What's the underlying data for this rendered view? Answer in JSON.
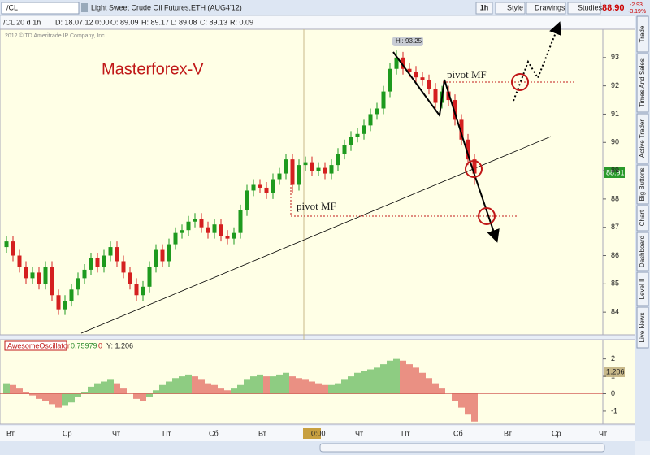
{
  "header": {
    "symbol": "/CL",
    "description": "Light Sweet Crude Oil Futures,ETH (AUG4'12)",
    "interval": "1h",
    "style": "Style",
    "drawings": "Drawings",
    "studies": "Studies",
    "last": "88.90",
    "change": "-2.93",
    "change_pct": "-3.19%"
  },
  "info": {
    "chart": "/CL 20 d 1h",
    "date": "D: 18.07.12 0:00",
    "open": "O: 89.09",
    "high": "H: 89.17",
    "low": "L: 89.08",
    "close": "C: 89.13",
    "range": "R: 0.09"
  },
  "copyright": "2012 © TD Ameritrade IP Company, Inc.",
  "tabs": [
    "Trade",
    "Times And Sales",
    "Active Trader",
    "Big Buttons",
    "Chart",
    "Dashboard",
    "Level II",
    "Live News"
  ],
  "x_labels": [
    "Вт",
    "Ср",
    "Чт",
    "Пт",
    "Сб",
    "Вт",
    "0:00",
    "Чт",
    "Пт",
    "Сб",
    "Вт",
    "Ср",
    "Чт"
  ],
  "chart_data": [
    {
      "type": "candlestick",
      "title": "Masterforex-V",
      "hi_label": "Hi: 93.25",
      "pivot_upper": "pivot MF",
      "pivot_lower": "pivot MF",
      "current_price": "88.91",
      "up_color": "#1e9a1e",
      "down_color": "#d42020",
      "open": [
        86.3,
        86.5,
        86.0,
        85.6,
        85.2,
        85.4,
        85.0,
        85.6,
        84.6,
        84.1,
        84.4,
        84.8,
        85.2,
        85.5,
        85.9,
        85.6,
        86.0,
        86.3,
        85.8,
        85.4,
        85.0,
        84.6,
        84.9,
        85.6,
        86.2,
        85.8,
        86.4,
        86.8,
        86.9,
        87.2,
        87.3,
        87.0,
        86.8,
        87.1,
        86.7,
        86.6,
        86.8,
        87.6,
        88.3,
        88.5,
        88.4,
        88.2,
        88.7,
        88.9,
        89.4,
        88.5,
        89.2,
        89.3,
        89.0,
        89.1,
        88.9,
        89.2,
        89.6,
        89.9,
        90.2,
        90.3,
        90.6,
        91.0,
        91.2,
        91.8,
        92.6,
        93.0,
        92.6,
        92.5,
        92.3,
        92.2,
        91.9,
        91.4,
        91.8,
        91.5,
        90.8,
        90.1,
        89.4
      ],
      "high": [
        86.7,
        86.7,
        86.2,
        85.8,
        85.6,
        85.6,
        85.8,
        85.8,
        84.8,
        84.6,
        85.0,
        85.4,
        85.7,
        86.1,
        86.1,
        86.2,
        86.5,
        86.5,
        86.0,
        85.6,
        85.2,
        85.1,
        85.8,
        86.4,
        86.4,
        86.6,
        87.0,
        87.1,
        87.4,
        87.5,
        87.5,
        87.2,
        87.3,
        87.3,
        86.9,
        87.0,
        87.8,
        88.5,
        88.7,
        88.7,
        88.6,
        88.9,
        89.1,
        89.6,
        89.6,
        89.4,
        89.5,
        89.5,
        89.3,
        89.3,
        89.4,
        89.8,
        90.1,
        90.4,
        90.5,
        90.8,
        91.2,
        91.4,
        92.0,
        92.8,
        93.25,
        93.2,
        92.8,
        92.7,
        92.5,
        92.4,
        92.1,
        92.0,
        92.0,
        91.7,
        91.0,
        90.3,
        89.6
      ],
      "low": [
        86.1,
        85.8,
        85.4,
        85.0,
        85.0,
        84.8,
        84.8,
        84.4,
        83.9,
        83.9,
        84.2,
        84.6,
        85.0,
        85.3,
        85.4,
        85.4,
        85.8,
        85.6,
        85.2,
        84.8,
        84.4,
        84.4,
        84.7,
        85.4,
        85.6,
        85.6,
        86.2,
        86.6,
        86.7,
        87.0,
        86.8,
        86.6,
        86.6,
        86.5,
        86.4,
        86.4,
        86.6,
        87.4,
        88.1,
        88.2,
        88.0,
        88.0,
        88.5,
        88.7,
        88.2,
        88.3,
        89.0,
        88.8,
        88.8,
        88.7,
        88.7,
        89.0,
        89.4,
        89.7,
        90.0,
        90.1,
        90.4,
        90.8,
        91.0,
        91.6,
        92.4,
        92.4,
        92.3,
        92.1,
        92.0,
        91.7,
        91.2,
        91.2,
        91.3,
        90.6,
        89.9,
        89.2,
        88.5
      ],
      "close": [
        86.5,
        86.0,
        85.6,
        85.2,
        85.4,
        85.0,
        85.6,
        84.6,
        84.1,
        84.4,
        84.8,
        85.2,
        85.5,
        85.9,
        85.6,
        86.0,
        86.3,
        85.8,
        85.4,
        85.0,
        84.6,
        84.9,
        85.6,
        86.2,
        85.8,
        86.4,
        86.8,
        86.9,
        87.2,
        87.3,
        87.0,
        86.8,
        87.1,
        86.7,
        86.6,
        86.8,
        87.6,
        88.3,
        88.5,
        88.4,
        88.2,
        88.7,
        88.9,
        89.4,
        88.5,
        89.2,
        89.3,
        89.0,
        89.1,
        88.9,
        89.2,
        89.6,
        89.9,
        90.2,
        90.3,
        90.6,
        91.0,
        91.2,
        91.8,
        92.6,
        93.0,
        92.6,
        92.5,
        92.3,
        92.2,
        91.9,
        91.4,
        91.8,
        91.5,
        90.8,
        90.1,
        89.4,
        88.9
      ],
      "ylim": [
        83.2,
        94.0
      ],
      "yticks": [
        84,
        85,
        86,
        87,
        88,
        89,
        90,
        91,
        92,
        93
      ]
    },
    {
      "type": "bar",
      "title": "AwesomeOscillator",
      "value_label": "0.75979",
      "zero_label": "0",
      "cursor_label": "Y: 1.206",
      "current_label": "1.206",
      "up_color": "#1e9a1e",
      "down_color": "#d42020",
      "values": [
        0.6,
        0.5,
        0.3,
        0.1,
        -0.1,
        -0.3,
        -0.4,
        -0.6,
        -0.8,
        -0.7,
        -0.5,
        -0.2,
        0.1,
        0.4,
        0.6,
        0.7,
        0.8,
        0.6,
        0.3,
        0.0,
        -0.3,
        -0.4,
        -0.2,
        0.2,
        0.5,
        0.7,
        0.9,
        1.0,
        1.1,
        1.0,
        0.8,
        0.6,
        0.5,
        0.3,
        0.2,
        0.3,
        0.5,
        0.8,
        1.0,
        1.1,
        1.0,
        1.0,
        1.1,
        1.2,
        1.0,
        0.9,
        0.8,
        0.7,
        0.6,
        0.5,
        0.5,
        0.6,
        0.8,
        1.0,
        1.2,
        1.3,
        1.4,
        1.5,
        1.7,
        1.9,
        2.0,
        1.9,
        1.7,
        1.5,
        1.2,
        0.9,
        0.6,
        0.3,
        0.0,
        -0.4,
        -0.8,
        -1.2,
        -1.6
      ],
      "ylim": [
        -1.75,
        2.45
      ],
      "yticks": [
        2,
        1,
        0,
        -1
      ]
    }
  ]
}
